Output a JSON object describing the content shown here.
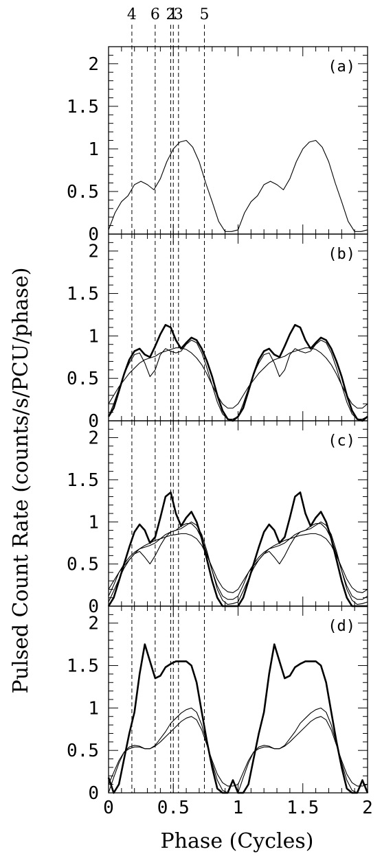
{
  "chart_data": {
    "type": "line",
    "xlabel": "Phase (Cycles)",
    "ylabel": "Pulsed Count Rate (counts/s/PCU/phase)",
    "xlim": [
      0,
      2
    ],
    "ylim": [
      0,
      2.2
    ],
    "x_ticks": [
      0,
      0.5,
      1,
      1.5,
      2
    ],
    "x_tick_labels": [
      "0",
      "0.5",
      "1",
      "1.5",
      "2"
    ],
    "y_ticks": [
      0,
      0.5,
      1,
      1.5,
      2
    ],
    "y_tick_labels": [
      "0",
      "0.5",
      "1",
      "1.5",
      "2"
    ],
    "reference_lines": [
      {
        "label": "4",
        "x": 0.18
      },
      {
        "label": "6",
        "x": 0.36
      },
      {
        "label": "2",
        "x": 0.48
      },
      {
        "label": "1",
        "x": 0.5
      },
      {
        "label": "3",
        "x": 0.54
      },
      {
        "label": "5",
        "x": 0.74
      }
    ],
    "grid": false,
    "panels": [
      {
        "label": "(a)",
        "series": [
          {
            "weight": "thin",
            "x": [
              0,
              0.05,
              0.1,
              0.15,
              0.2,
              0.25,
              0.3,
              0.35,
              0.4,
              0.45,
              0.5,
              0.55,
              0.6,
              0.65,
              0.7,
              0.75,
              0.8,
              0.85,
              0.9,
              0.95,
              1.0
            ],
            "y": [
              0.05,
              0.25,
              0.38,
              0.45,
              0.58,
              0.62,
              0.58,
              0.52,
              0.65,
              0.85,
              1.0,
              1.08,
              1.1,
              1.02,
              0.85,
              0.6,
              0.38,
              0.15,
              0.03,
              0.03,
              0.05
            ]
          }
        ]
      },
      {
        "label": "(b)",
        "series": [
          {
            "weight": "thick",
            "x": [
              0,
              0.04,
              0.08,
              0.12,
              0.16,
              0.2,
              0.24,
              0.28,
              0.32,
              0.36,
              0.4,
              0.44,
              0.48,
              0.52,
              0.56,
              0.6,
              0.64,
              0.68,
              0.72,
              0.76,
              0.8,
              0.84,
              0.88,
              0.92,
              0.96,
              1.0
            ],
            "y": [
              0.05,
              0.15,
              0.35,
              0.55,
              0.72,
              0.82,
              0.85,
              0.78,
              0.75,
              0.88,
              1.02,
              1.13,
              1.1,
              0.95,
              0.85,
              0.92,
              0.98,
              0.95,
              0.85,
              0.7,
              0.52,
              0.3,
              0.12,
              0.02,
              0.0,
              0.05
            ]
          },
          {
            "weight": "thin",
            "x": [
              0,
              0.04,
              0.08,
              0.12,
              0.16,
              0.2,
              0.24,
              0.28,
              0.32,
              0.36,
              0.4,
              0.44,
              0.48,
              0.52,
              0.56,
              0.6,
              0.64,
              0.68,
              0.72,
              0.76,
              0.8,
              0.84,
              0.88,
              0.92,
              0.96,
              1.0
            ],
            "y": [
              0.05,
              0.2,
              0.38,
              0.55,
              0.68,
              0.78,
              0.8,
              0.68,
              0.52,
              0.6,
              0.78,
              0.85,
              0.82,
              0.8,
              0.82,
              0.9,
              0.95,
              0.92,
              0.8,
              0.62,
              0.42,
              0.22,
              0.08,
              0.02,
              0.02,
              0.05
            ]
          },
          {
            "weight": "thin",
            "x": [
              0,
              0.04,
              0.08,
              0.12,
              0.16,
              0.2,
              0.24,
              0.28,
              0.32,
              0.36,
              0.4,
              0.44,
              0.48,
              0.52,
              0.56,
              0.6,
              0.64,
              0.68,
              0.72,
              0.76,
              0.8,
              0.84,
              0.88,
              0.92,
              0.96,
              1.0
            ],
            "y": [
              0.2,
              0.3,
              0.4,
              0.48,
              0.56,
              0.62,
              0.68,
              0.72,
              0.74,
              0.76,
              0.8,
              0.82,
              0.84,
              0.86,
              0.86,
              0.84,
              0.8,
              0.74,
              0.66,
              0.55,
              0.42,
              0.3,
              0.2,
              0.15,
              0.15,
              0.2
            ]
          }
        ]
      },
      {
        "label": "(c)",
        "series": [
          {
            "weight": "thick",
            "x": [
              0,
              0.04,
              0.08,
              0.12,
              0.16,
              0.2,
              0.24,
              0.28,
              0.32,
              0.36,
              0.4,
              0.44,
              0.48,
              0.52,
              0.56,
              0.6,
              0.64,
              0.68,
              0.72,
              0.76,
              0.8,
              0.84,
              0.88,
              0.92,
              0.96,
              1.0
            ],
            "y": [
              0.0,
              0.1,
              0.3,
              0.5,
              0.7,
              0.88,
              0.97,
              0.9,
              0.75,
              0.82,
              1.05,
              1.3,
              1.35,
              1.1,
              0.95,
              1.05,
              1.12,
              1.0,
              0.8,
              0.55,
              0.3,
              0.1,
              0.0,
              0.0,
              0.0,
              0.0
            ]
          },
          {
            "weight": "thin",
            "x": [
              0,
              0.04,
              0.08,
              0.12,
              0.16,
              0.2,
              0.24,
              0.28,
              0.32,
              0.36,
              0.4,
              0.44,
              0.48,
              0.52,
              0.56,
              0.6,
              0.64,
              0.68,
              0.72,
              0.76,
              0.8,
              0.84,
              0.88,
              0.92,
              0.96,
              1.0
            ],
            "y": [
              0.05,
              0.18,
              0.32,
              0.45,
              0.55,
              0.62,
              0.65,
              0.58,
              0.5,
              0.6,
              0.72,
              0.82,
              0.88,
              0.9,
              0.92,
              0.96,
              1.0,
              0.96,
              0.85,
              0.65,
              0.42,
              0.2,
              0.07,
              0.02,
              0.03,
              0.05
            ]
          },
          {
            "weight": "thin",
            "x": [
              0,
              0.04,
              0.08,
              0.12,
              0.16,
              0.2,
              0.24,
              0.28,
              0.32,
              0.36,
              0.4,
              0.44,
              0.48,
              0.52,
              0.56,
              0.6,
              0.64,
              0.68,
              0.72,
              0.76,
              0.8,
              0.84,
              0.88,
              0.92,
              0.96,
              1.0
            ],
            "y": [
              0.12,
              0.25,
              0.4,
              0.5,
              0.58,
              0.64,
              0.68,
              0.7,
              0.72,
              0.75,
              0.8,
              0.85,
              0.88,
              0.9,
              0.95,
              0.98,
              0.98,
              0.92,
              0.8,
              0.62,
              0.42,
              0.24,
              0.12,
              0.08,
              0.08,
              0.12
            ]
          },
          {
            "weight": "thin",
            "x": [
              0,
              0.04,
              0.08,
              0.12,
              0.16,
              0.2,
              0.24,
              0.28,
              0.32,
              0.36,
              0.4,
              0.44,
              0.48,
              0.52,
              0.56,
              0.6,
              0.64,
              0.68,
              0.72,
              0.76,
              0.8,
              0.84,
              0.88,
              0.92,
              0.96,
              1.0
            ],
            "y": [
              0.2,
              0.3,
              0.4,
              0.48,
              0.55,
              0.62,
              0.68,
              0.72,
              0.75,
              0.78,
              0.8,
              0.82,
              0.84,
              0.85,
              0.86,
              0.86,
              0.84,
              0.8,
              0.72,
              0.6,
              0.46,
              0.32,
              0.22,
              0.17,
              0.16,
              0.2
            ]
          }
        ]
      },
      {
        "label": "(d)",
        "series": [
          {
            "weight": "thick",
            "x": [
              0,
              0.04,
              0.08,
              0.12,
              0.16,
              0.2,
              0.24,
              0.28,
              0.32,
              0.36,
              0.4,
              0.44,
              0.48,
              0.52,
              0.56,
              0.6,
              0.64,
              0.68,
              0.72,
              0.76,
              0.8,
              0.84,
              0.88,
              0.92,
              0.96,
              1.0
            ],
            "y": [
              0.18,
              0.0,
              0.1,
              0.4,
              0.7,
              0.95,
              1.4,
              1.75,
              1.55,
              1.35,
              1.38,
              1.48,
              1.52,
              1.55,
              1.55,
              1.55,
              1.5,
              1.3,
              0.95,
              0.6,
              0.3,
              0.05,
              0.0,
              0.0,
              0.15,
              0.0
            ]
          },
          {
            "weight": "thin",
            "x": [
              0,
              0.04,
              0.08,
              0.12,
              0.16,
              0.2,
              0.24,
              0.28,
              0.32,
              0.36,
              0.4,
              0.44,
              0.48,
              0.52,
              0.56,
              0.6,
              0.64,
              0.68,
              0.72,
              0.76,
              0.8,
              0.84,
              0.88,
              0.92,
              0.96,
              1.0
            ],
            "y": [
              0.0,
              0.18,
              0.35,
              0.48,
              0.54,
              0.56,
              0.55,
              0.52,
              0.52,
              0.56,
              0.64,
              0.72,
              0.82,
              0.88,
              0.94,
              0.98,
              1.0,
              0.95,
              0.8,
              0.58,
              0.35,
              0.15,
              0.03,
              0.0,
              0.0,
              0.0
            ]
          },
          {
            "weight": "thin",
            "x": [
              0,
              0.04,
              0.08,
              0.12,
              0.16,
              0.2,
              0.24,
              0.28,
              0.32,
              0.36,
              0.4,
              0.44,
              0.48,
              0.52,
              0.56,
              0.6,
              0.64,
              0.68,
              0.72,
              0.76,
              0.8,
              0.84,
              0.88,
              0.92,
              0.96,
              1.0
            ],
            "y": [
              0.1,
              0.24,
              0.38,
              0.48,
              0.52,
              0.54,
              0.54,
              0.52,
              0.52,
              0.55,
              0.6,
              0.66,
              0.72,
              0.78,
              0.84,
              0.88,
              0.9,
              0.86,
              0.74,
              0.56,
              0.38,
              0.22,
              0.12,
              0.08,
              0.08,
              0.1
            ]
          }
        ]
      }
    ]
  }
}
